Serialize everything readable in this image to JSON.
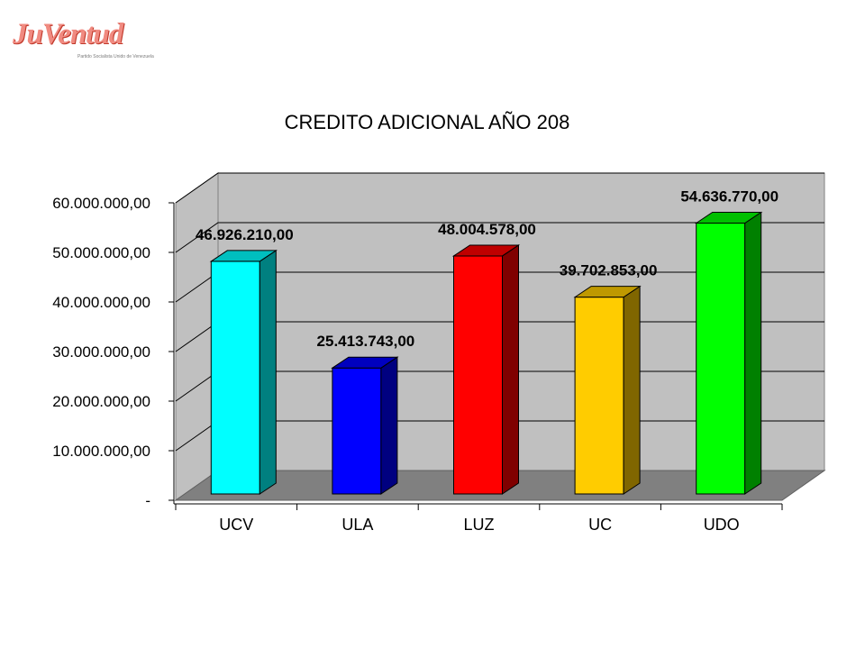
{
  "logo": {
    "text": "JuVentud",
    "subtitle": "Partido Socialista Unido de Venezuela"
  },
  "chart_data": {
    "type": "bar",
    "title": "CREDITO ADICIONAL AÑO 208",
    "categories": [
      "UCV",
      "ULA",
      "LUZ",
      "UC",
      "UDO"
    ],
    "values": [
      46926210,
      25413743,
      48004578,
      39702853,
      54636770
    ],
    "value_labels": [
      "46.926.210,00",
      "25.413.743,00",
      "48.004.578,00",
      "39.702.853,00",
      "54.636.770,00"
    ],
    "bar_colors": [
      "#00ffff",
      "#0000ff",
      "#ff0000",
      "#ffcc00",
      "#00ff00"
    ],
    "y_ticks": [
      0,
      10000000,
      20000000,
      30000000,
      40000000,
      50000000,
      60000000
    ],
    "y_tick_labels": [
      "-",
      "10.000.000,00",
      "20.000.000,00",
      "30.000.000,00",
      "40.000.000,00",
      "50.000.000,00",
      "60.000.000,00"
    ],
    "ylim": [
      0,
      60000000
    ],
    "grid": true,
    "style": "3d"
  }
}
